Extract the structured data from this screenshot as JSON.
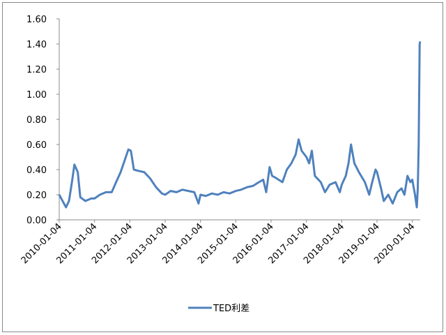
{
  "chart_data": {
    "type": "line",
    "x": [
      "2010-01-04",
      "2010-02-15",
      "2010-03-15",
      "2010-04-15",
      "2010-05-15",
      "2010-06-10",
      "2010-07-15",
      "2010-08-10",
      "2010-10-01",
      "2010-12-01",
      "2011-01-04",
      "2011-03-01",
      "2011-05-01",
      "2011-07-01",
      "2011-08-15",
      "2011-10-01",
      "2011-11-15",
      "2011-12-20",
      "2012-01-15",
      "2012-02-15",
      "2012-04-01",
      "2012-06-01",
      "2012-08-01",
      "2012-10-01",
      "2012-12-01",
      "2013-01-04",
      "2013-03-01",
      "2013-05-01",
      "2013-07-01",
      "2013-09-01",
      "2013-11-01",
      "2013-12-15",
      "2014-01-04",
      "2014-03-01",
      "2014-05-01",
      "2014-07-01",
      "2014-09-01",
      "2014-11-01",
      "2015-01-04",
      "2015-03-01",
      "2015-05-01",
      "2015-07-01",
      "2015-09-01",
      "2015-10-15",
      "2015-11-15",
      "2015-12-20",
      "2016-01-15",
      "2016-03-01",
      "2016-05-01",
      "2016-06-15",
      "2016-08-01",
      "2016-09-15",
      "2016-10-15",
      "2016-11-15",
      "2017-01-04",
      "2017-02-01",
      "2017-03-01",
      "2017-04-01",
      "2017-06-01",
      "2017-07-15",
      "2017-09-01",
      "2017-11-01",
      "2017-12-15",
      "2018-01-04",
      "2018-02-15",
      "2018-03-15",
      "2018-04-10",
      "2018-05-15",
      "2018-07-01",
      "2018-09-01",
      "2018-10-15",
      "2018-11-15",
      "2018-12-20",
      "2019-01-04",
      "2019-02-15",
      "2019-03-15",
      "2019-05-01",
      "2019-06-15",
      "2019-08-01",
      "2019-09-15",
      "2019-10-15",
      "2019-11-15",
      "2019-12-15",
      "2020-01-04",
      "2020-02-01",
      "2020-02-20",
      "2020-03-01",
      "2020-03-10",
      "2020-03-20",
      "2020-03-25"
    ],
    "series": [
      {
        "name": "TED利差",
        "color": "#4f81bd",
        "values": [
          0.2,
          0.14,
          0.1,
          0.15,
          0.3,
          0.44,
          0.38,
          0.18,
          0.15,
          0.17,
          0.17,
          0.2,
          0.22,
          0.22,
          0.3,
          0.38,
          0.48,
          0.56,
          0.55,
          0.4,
          0.39,
          0.38,
          0.33,
          0.26,
          0.21,
          0.2,
          0.23,
          0.22,
          0.24,
          0.23,
          0.22,
          0.13,
          0.2,
          0.19,
          0.21,
          0.2,
          0.22,
          0.21,
          0.23,
          0.24,
          0.26,
          0.27,
          0.3,
          0.32,
          0.22,
          0.42,
          0.35,
          0.33,
          0.3,
          0.4,
          0.45,
          0.52,
          0.64,
          0.55,
          0.5,
          0.45,
          0.55,
          0.35,
          0.3,
          0.22,
          0.28,
          0.3,
          0.22,
          0.28,
          0.35,
          0.45,
          0.6,
          0.45,
          0.38,
          0.3,
          0.2,
          0.3,
          0.4,
          0.38,
          0.25,
          0.15,
          0.2,
          0.13,
          0.22,
          0.25,
          0.2,
          0.35,
          0.3,
          0.32,
          0.2,
          0.1,
          0.25,
          0.6,
          1.4,
          1.42
        ]
      }
    ],
    "xlim": [
      "2010-01-04",
      "2020-03-26"
    ],
    "xticks": [
      "2010-01-04",
      "2011-01-04",
      "2012-01-04",
      "2013-01-04",
      "2014-01-04",
      "2015-01-04",
      "2016-01-04",
      "2017-01-04",
      "2018-01-04",
      "2019-01-04",
      "2020-01-04"
    ],
    "ylim": [
      0,
      1.6
    ],
    "yticks": [
      {
        "value": 0,
        "label": "0.00"
      },
      {
        "value": 0.2,
        "label": "0.20"
      },
      {
        "value": 0.4,
        "label": "0.40"
      },
      {
        "value": 0.6,
        "label": "0.60"
      },
      {
        "value": 0.8,
        "label": "0.80"
      },
      {
        "value": 1.0,
        "label": "1.00"
      },
      {
        "value": 1.2,
        "label": "1.20"
      },
      {
        "value": 1.4,
        "label": "1.40"
      },
      {
        "value": 1.6,
        "label": "1.60"
      }
    ],
    "grid": false,
    "legend": "bottom"
  }
}
